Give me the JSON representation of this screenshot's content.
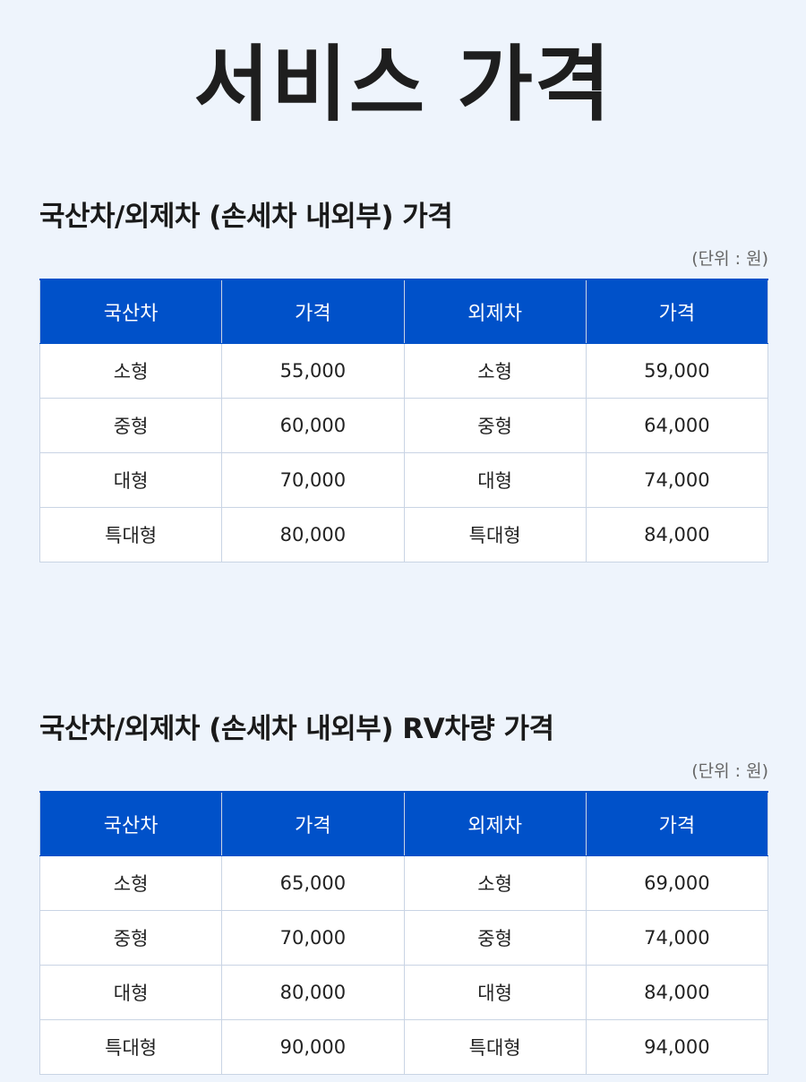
{
  "page": {
    "title": "서비스 가격"
  },
  "sections": [
    {
      "title": "국산차/외제차 (손세차 내외부) 가격",
      "unit": "(단위 : 원)",
      "headers": [
        "국산차",
        "가격",
        "외제차",
        "가격"
      ],
      "rows": [
        [
          "소형",
          "55,000",
          "소형",
          "59,000"
        ],
        [
          "중형",
          "60,000",
          "중형",
          "64,000"
        ],
        [
          "대형",
          "70,000",
          "대형",
          "74,000"
        ],
        [
          "특대형",
          "80,000",
          "특대형",
          "84,000"
        ]
      ]
    },
    {
      "title": "국산차/외제차 (손세차 내외부) RV차량 가격",
      "unit": "(단위 : 원)",
      "headers": [
        "국산차",
        "가격",
        "외제차",
        "가격"
      ],
      "rows": [
        [
          "소형",
          "65,000",
          "소형",
          "69,000"
        ],
        [
          "중형",
          "70,000",
          "중형",
          "74,000"
        ],
        [
          "대형",
          "80,000",
          "대형",
          "84,000"
        ],
        [
          "특대형",
          "90,000",
          "특대형",
          "94,000"
        ]
      ]
    }
  ]
}
